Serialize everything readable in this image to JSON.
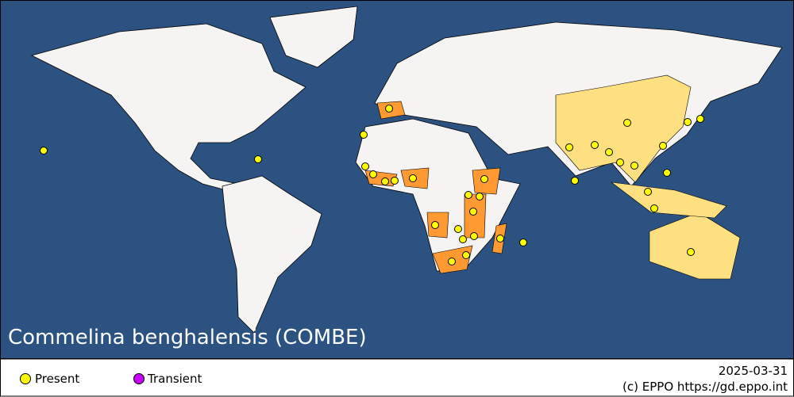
{
  "title": "Commelina benghalensis (COMBE)",
  "legend": [
    "Present",
    "Transient"
  ],
  "date": "2025-03-31",
  "credit": "(c) EPPO https://gd.eppo.int"
}
